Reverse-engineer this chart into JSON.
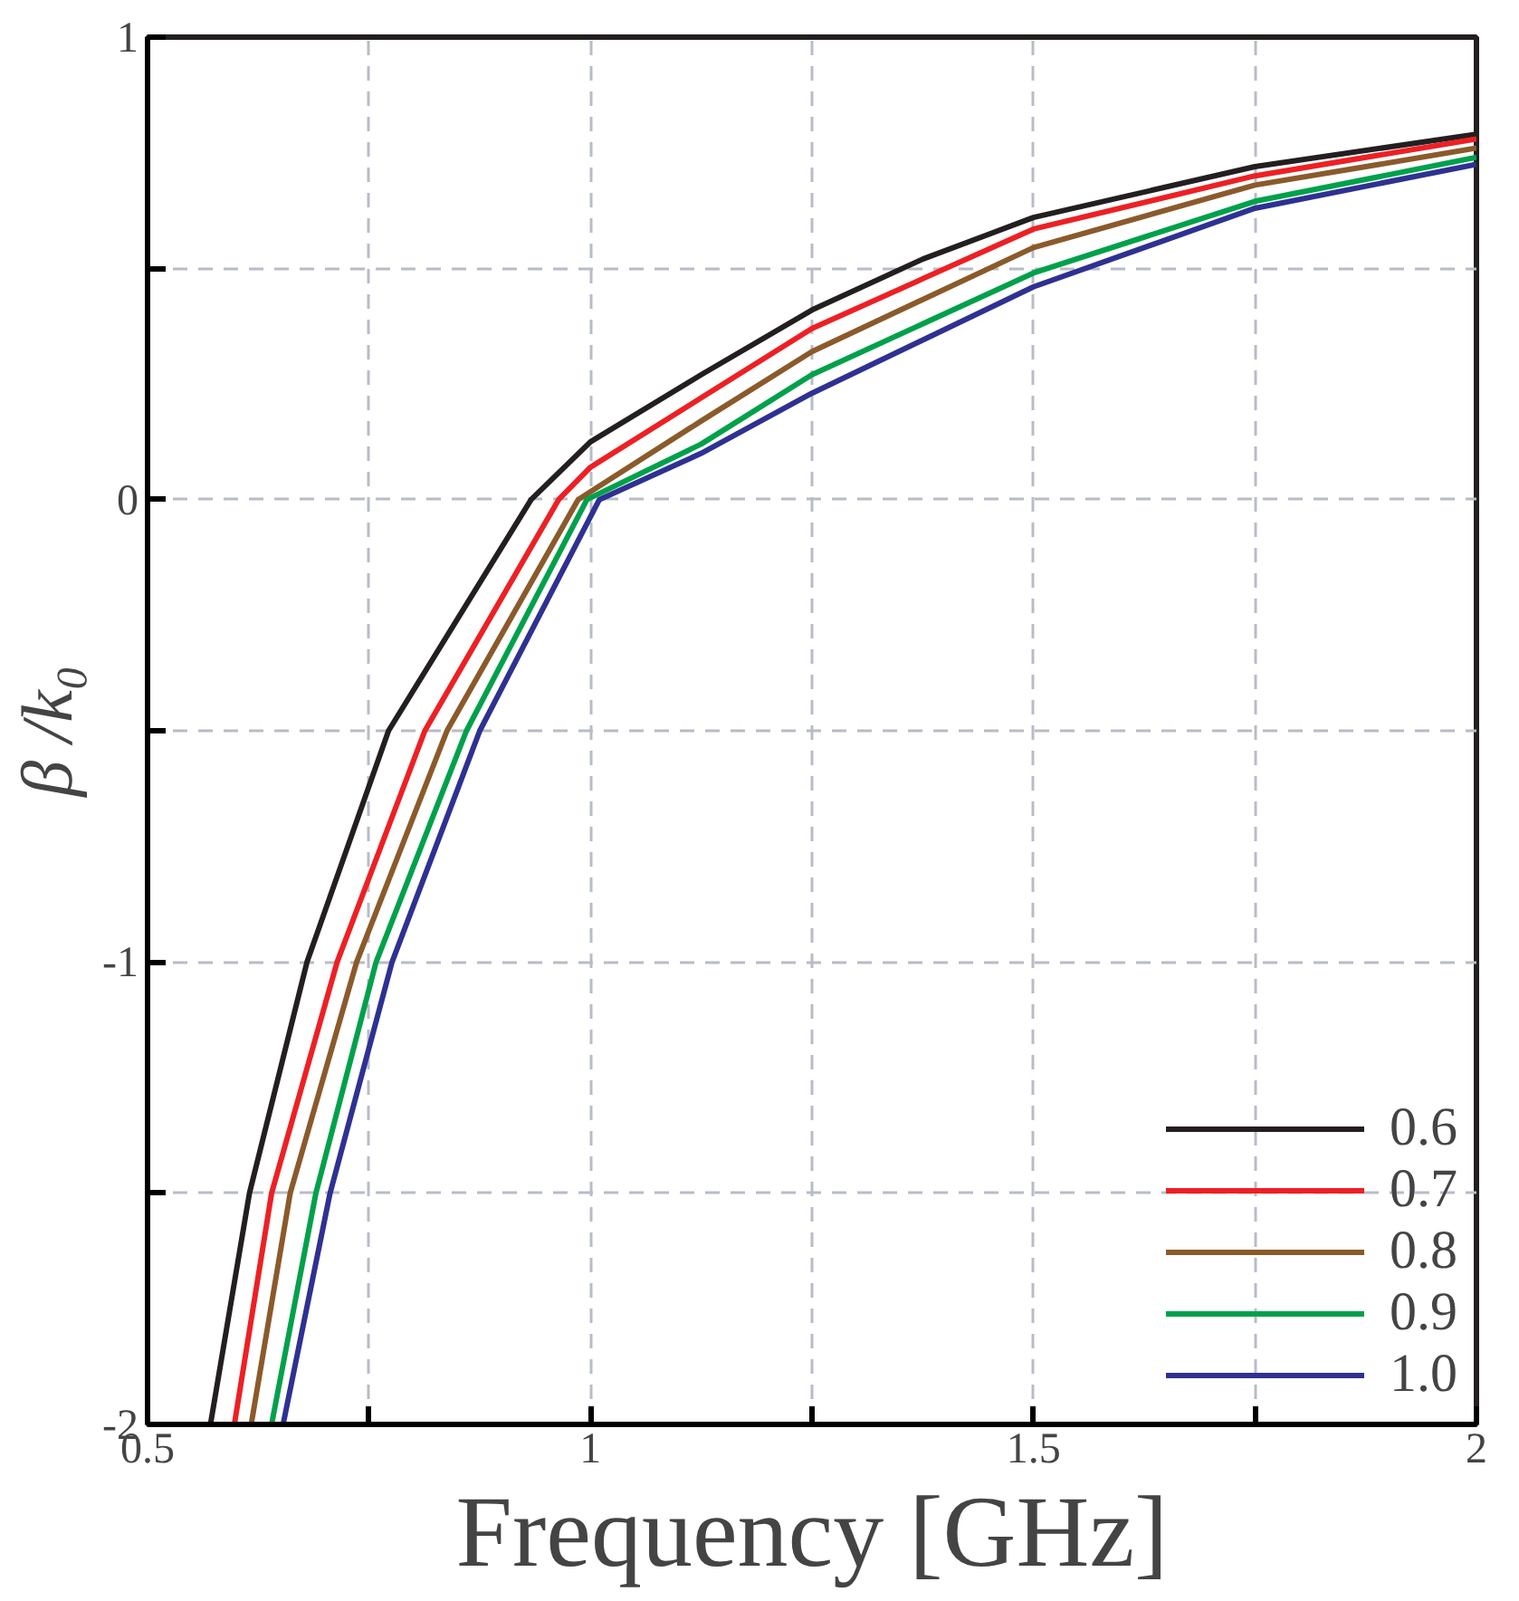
{
  "chart_data": {
    "type": "line",
    "xlabel": "Frequency [GHz]",
    "ylabel": "β /k₀",
    "xlim": [
      0.5,
      2
    ],
    "ylim": [
      -2,
      1
    ],
    "xticks": [
      0.5,
      {
        "value": 0.75,
        "label": null
      },
      1,
      {
        "value": 1.25,
        "label": null
      },
      1.5,
      {
        "value": 1.75,
        "label": null
      },
      2
    ],
    "yticks": [
      -2,
      {
        "value": -1.5,
        "label": null
      },
      -1,
      {
        "value": -0.5,
        "label": null
      },
      0,
      {
        "value": 0.5,
        "label": null
      },
      1
    ],
    "grid": true,
    "legend": "bottom right",
    "line_style": "solid",
    "series": [
      {
        "name": "0.6",
        "color": "#231f20",
        "x": [
          0.571,
          0.615,
          0.68,
          0.772,
          0.933,
          1.0,
          1.125,
          1.25,
          1.375,
          1.5,
          1.75,
          2.0
        ],
        "values": [
          -2,
          -1.5,
          -1,
          -0.5,
          0,
          0.125,
          0.27,
          0.41,
          0.52,
          0.61,
          0.72,
          0.79
        ]
      },
      {
        "name": "0.7",
        "color": "#ed2024",
        "x": [
          0.598,
          0.64,
          0.714,
          0.813,
          0.964,
          1.0,
          1.125,
          1.25,
          1.5,
          1.75,
          2.0
        ],
        "values": [
          -2,
          -1.5,
          -1,
          -0.5,
          0,
          0.07,
          0.22,
          0.37,
          0.585,
          0.7,
          0.78
        ]
      },
      {
        "name": "0.8",
        "color": "#8b5a2b",
        "x": [
          0.617,
          0.661,
          0.736,
          0.838,
          0.986,
          1.125,
          1.25,
          1.5,
          1.75,
          2.0
        ],
        "values": [
          -2,
          -1.5,
          -1,
          -0.5,
          0,
          0.17,
          0.32,
          0.545,
          0.68,
          0.76
        ]
      },
      {
        "name": "0.9",
        "color": "#00a14b",
        "x": [
          0.64,
          0.69,
          0.758,
          0.86,
          0.996,
          1.125,
          1.25,
          1.5,
          1.75,
          2.0
        ],
        "values": [
          -2,
          -1.5,
          -1,
          -0.5,
          0,
          0.12,
          0.27,
          0.49,
          0.645,
          0.74
        ]
      },
      {
        "name": "1.0",
        "color": "#2e3192",
        "x": [
          0.653,
          0.706,
          0.776,
          0.875,
          1.01,
          1.125,
          1.25,
          1.5,
          1.75,
          2.0
        ],
        "values": [
          -2,
          -1.5,
          -1,
          -0.5,
          0,
          0.1,
          0.23,
          0.46,
          0.63,
          0.725
        ]
      }
    ]
  }
}
